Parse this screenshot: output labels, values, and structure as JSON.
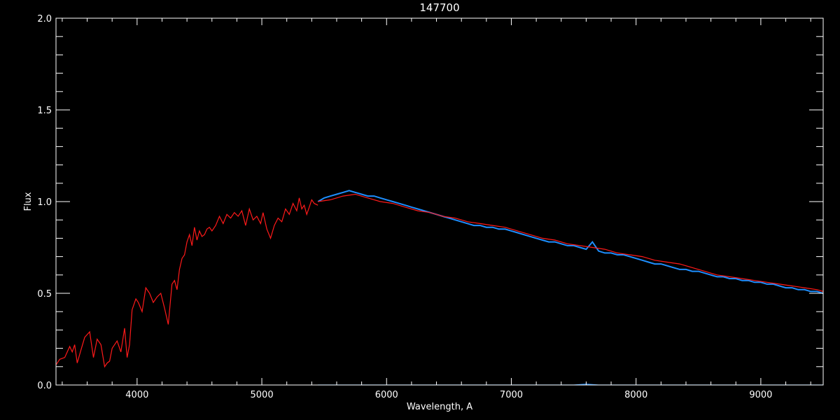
{
  "chart_data": {
    "type": "line",
    "title": "147700",
    "xlabel": "Wavelength, A",
    "ylabel": "Flux",
    "xlim": [
      3350,
      9500
    ],
    "ylim": [
      0,
      2.0
    ],
    "x_ticks": [
      4000,
      5000,
      6000,
      7000,
      8000,
      9000
    ],
    "y_ticks": [
      0.0,
      0.5,
      1.0,
      1.5,
      2.0
    ],
    "y_tick_labels": [
      "0.0",
      "0.5",
      "1.0",
      "1.5",
      "2.0"
    ],
    "x_minor_step": 200,
    "y_minor_step": 0.1,
    "grid": false,
    "series": [
      {
        "color": "#ff1a1a",
        "x": [
          3350,
          3380,
          3420,
          3460,
          3480,
          3500,
          3520,
          3550,
          3580,
          3620,
          3650,
          3680,
          3710,
          3740,
          3760,
          3780,
          3800,
          3840,
          3870,
          3900,
          3920,
          3940,
          3960,
          3990,
          4010,
          4040,
          4070,
          4100,
          4130,
          4160,
          4190,
          4220,
          4250,
          4280,
          4300,
          4320,
          4340,
          4360,
          4380,
          4400,
          4420,
          4440,
          4460,
          4480,
          4500,
          4520,
          4540,
          4560,
          4580,
          4600,
          4630,
          4660,
          4690,
          4720,
          4750,
          4780,
          4810,
          4840,
          4870,
          4900,
          4930,
          4960,
          4990,
          5010,
          5040,
          5070,
          5100,
          5130,
          5160,
          5190,
          5220,
          5250,
          5280,
          5300,
          5320,
          5340,
          5360,
          5380,
          5400,
          5420,
          5450
        ],
        "y": [
          0.11,
          0.14,
          0.15,
          0.21,
          0.18,
          0.22,
          0.12,
          0.19,
          0.26,
          0.29,
          0.15,
          0.25,
          0.22,
          0.1,
          0.12,
          0.13,
          0.2,
          0.24,
          0.18,
          0.31,
          0.15,
          0.22,
          0.41,
          0.47,
          0.45,
          0.4,
          0.53,
          0.5,
          0.45,
          0.48,
          0.5,
          0.42,
          0.33,
          0.55,
          0.57,
          0.52,
          0.63,
          0.69,
          0.71,
          0.78,
          0.82,
          0.76,
          0.86,
          0.79,
          0.84,
          0.81,
          0.82,
          0.85,
          0.86,
          0.84,
          0.87,
          0.92,
          0.88,
          0.93,
          0.91,
          0.94,
          0.92,
          0.95,
          0.87,
          0.96,
          0.9,
          0.92,
          0.88,
          0.94,
          0.85,
          0.8,
          0.87,
          0.91,
          0.89,
          0.96,
          0.93,
          0.99,
          0.95,
          1.02,
          0.96,
          0.98,
          0.93,
          0.97,
          1.01,
          0.99,
          0.98
        ]
      },
      {
        "color": "#1e8fff",
        "x": [
          5450,
          5500,
          5550,
          5600,
          5650,
          5700,
          5750,
          5800,
          5850,
          5900,
          5950,
          6000,
          6050,
          6100,
          6150,
          6200,
          6250,
          6300,
          6350,
          6400,
          6450,
          6500,
          6550,
          6600,
          6650,
          6700,
          6750,
          6800,
          6850,
          6900,
          6950,
          7000,
          7050,
          7100,
          7150,
          7200,
          7250,
          7300,
          7350,
          7400,
          7450,
          7500,
          7550,
          7600,
          7650,
          7700,
          7750,
          7800,
          7850,
          7900,
          7950,
          8000,
          8050,
          8100,
          8150,
          8200,
          8250,
          8300,
          8350,
          8400,
          8450,
          8500,
          8550,
          8600,
          8650,
          8700,
          8750,
          8800,
          8850,
          8900,
          8950,
          9000,
          9050,
          9100,
          9150,
          9200,
          9250,
          9300,
          9350,
          9400,
          9450,
          9500
        ],
        "y": [
          1.0,
          1.02,
          1.03,
          1.04,
          1.05,
          1.06,
          1.05,
          1.04,
          1.03,
          1.03,
          1.02,
          1.01,
          1.0,
          0.99,
          0.98,
          0.97,
          0.96,
          0.95,
          0.94,
          0.93,
          0.92,
          0.91,
          0.9,
          0.89,
          0.88,
          0.87,
          0.87,
          0.86,
          0.86,
          0.85,
          0.85,
          0.84,
          0.83,
          0.82,
          0.81,
          0.8,
          0.79,
          0.78,
          0.78,
          0.77,
          0.76,
          0.76,
          0.75,
          0.74,
          0.78,
          0.73,
          0.72,
          0.72,
          0.71,
          0.71,
          0.7,
          0.69,
          0.68,
          0.67,
          0.66,
          0.66,
          0.65,
          0.64,
          0.63,
          0.63,
          0.62,
          0.62,
          0.61,
          0.6,
          0.59,
          0.59,
          0.58,
          0.58,
          0.57,
          0.57,
          0.56,
          0.56,
          0.55,
          0.55,
          0.54,
          0.53,
          0.53,
          0.52,
          0.52,
          0.51,
          0.51,
          0.5
        ]
      },
      {
        "color": "#ff1a1a",
        "x": [
          5450,
          5550,
          5650,
          5750,
          5850,
          5950,
          6050,
          6150,
          6250,
          6350,
          6450,
          6550,
          6650,
          6750,
          6850,
          6950,
          7050,
          7150,
          7250,
          7350,
          7450,
          7550,
          7650,
          7750,
          7850,
          7950,
          8050,
          8150,
          8250,
          8350,
          8450,
          8550,
          8650,
          8750,
          8850,
          8950,
          9050,
          9150,
          9250,
          9350,
          9450,
          9500
        ],
        "y": [
          1.0,
          1.01,
          1.03,
          1.04,
          1.02,
          1.0,
          0.99,
          0.97,
          0.95,
          0.94,
          0.92,
          0.91,
          0.89,
          0.88,
          0.87,
          0.86,
          0.84,
          0.82,
          0.8,
          0.79,
          0.77,
          0.76,
          0.75,
          0.74,
          0.72,
          0.71,
          0.7,
          0.68,
          0.67,
          0.66,
          0.64,
          0.62,
          0.6,
          0.59,
          0.58,
          0.57,
          0.56,
          0.55,
          0.54,
          0.53,
          0.52,
          0.51
        ]
      },
      {
        "color": "#1e8fff",
        "x": [
          5450,
          6000,
          7000,
          7500,
          7600,
          7700,
          8000,
          9000,
          9500
        ],
        "y": [
          0.0,
          0.0,
          0.0,
          0.0,
          0.005,
          0.0,
          0.0,
          0.0,
          0.0
        ]
      }
    ]
  }
}
